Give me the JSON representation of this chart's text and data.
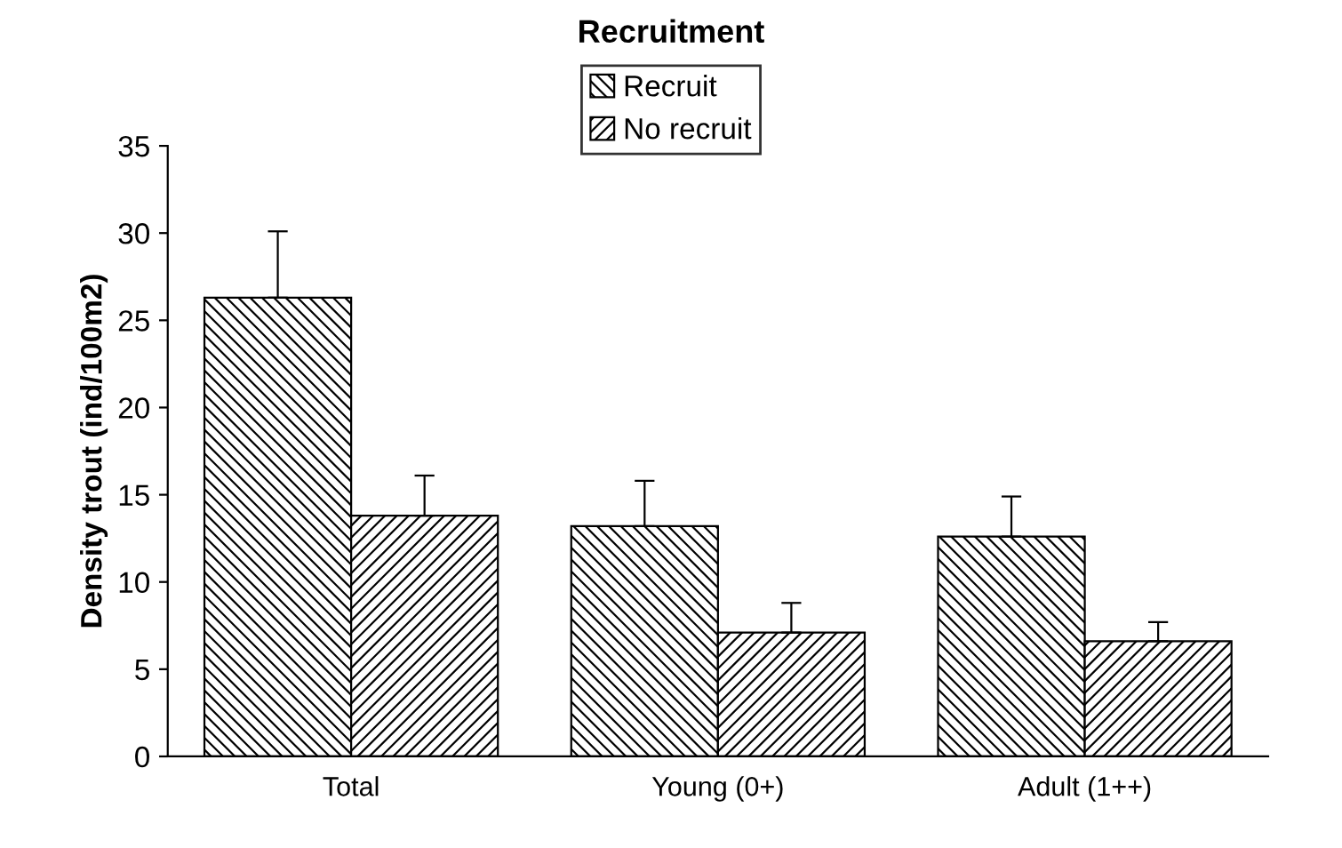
{
  "chart_data": {
    "type": "bar",
    "title": "Recruitment",
    "ylabel": "Density trout (ind/100m2)",
    "categories": [
      "Total",
      "Young (0+)",
      "Adult (1++)"
    ],
    "series": [
      {
        "name": "Recruit",
        "color": "#000000",
        "values": [
          26.3,
          13.2,
          12.6
        ],
        "errors": [
          [
            26.3,
            30.1
          ],
          [
            13.2,
            15.8
          ],
          [
            12.6,
            14.9
          ]
        ]
      },
      {
        "name": "No recruit",
        "color": "#000000",
        "values": [
          13.8,
          7.1,
          6.6
        ],
        "errors": [
          [
            13.8,
            16.1
          ],
          [
            7.1,
            8.8
          ],
          [
            6.6,
            7.7
          ]
        ]
      }
    ],
    "ylim": [
      0,
      35
    ],
    "yticks": [
      0,
      5,
      10,
      15,
      20,
      25,
      30,
      35
    ],
    "grid": false,
    "legend": "top"
  }
}
